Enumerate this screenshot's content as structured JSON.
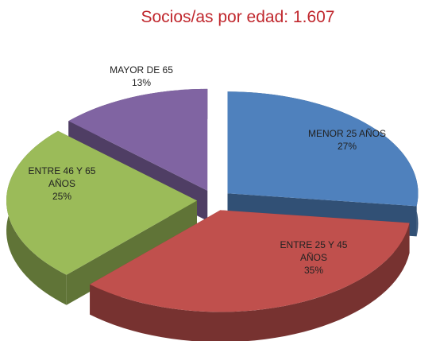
{
  "chart_data": {
    "type": "pie3d",
    "title": "Socios/as por edad: 1.607",
    "categories": [
      "MENOR 25 AÑOS",
      "ENTRE 25 Y 45 AÑOS",
      "ENTRE 46 Y 65 AÑOS",
      "MAYOR DE 65"
    ],
    "values": [
      27,
      35,
      25,
      13
    ],
    "value_labels": [
      "27%",
      "35%",
      "25%",
      "13%"
    ],
    "colors": [
      "#4f81bd",
      "#c0504d",
      "#9bbb59",
      "#8064a2"
    ]
  }
}
